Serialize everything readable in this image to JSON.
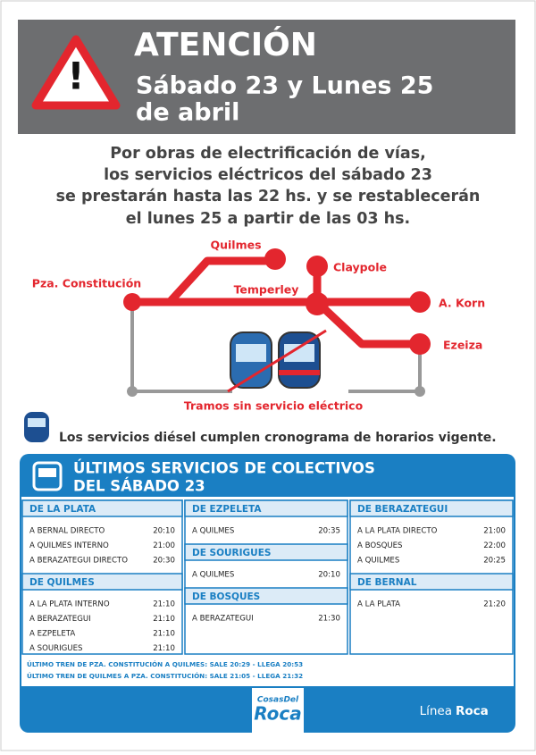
{
  "header": {
    "title": "ATENCIÓN",
    "subtitle_lines": [
      "Sábado 23 y Lunes 25",
      "de abril"
    ]
  },
  "notice": {
    "lines": [
      "Por obras de electrificación de vías,",
      "los servicios eléctricos del sábado 23",
      "se prestarán hasta las 22 hs. y se restablecerán",
      "el lunes 25 a partir de las 03 hs."
    ]
  },
  "map": {
    "stations": [
      "Quilmes",
      "Pza. Constitución",
      "Claypole",
      "Temperley",
      "A. Korn",
      "Ezeiza"
    ],
    "caption": "Tramos sin servicio eléctrico"
  },
  "diesel_note": "Los servicios diésel cumplen cronograma de horarios vigente.",
  "buses": {
    "title_lines": [
      "ÚLTIMOS SERVICIOS DE COLECTIVOS",
      "DEL SÁBADO 23"
    ],
    "columns": [
      [
        {
          "origin": "DE LA PLATA",
          "rows": [
            [
              "A BERNAL DIRECTO",
              "20:10"
            ],
            [
              "A QUILMES INTERNO",
              "21:00"
            ],
            [
              "A BERAZATEGUI DIRECTO",
              "20:30"
            ]
          ]
        },
        {
          "origin": "DE QUILMES",
          "rows": [
            [
              "A LA PLATA INTERNO",
              "21:10"
            ],
            [
              "A BERAZATEGUI",
              "21:10"
            ],
            [
              "A EZPELETA",
              "21:10"
            ],
            [
              "A SOURIGUES",
              "21:10"
            ]
          ]
        }
      ],
      [
        {
          "origin": "DE EZPELETA",
          "rows": [
            [
              "A QUILMES",
              "20:35"
            ]
          ]
        },
        {
          "origin": "DE SOURIGUES",
          "rows": [
            [
              "A QUILMES",
              "20:10"
            ]
          ]
        },
        {
          "origin": "DE BOSQUES",
          "rows": [
            [
              "A BERAZATEGUI",
              "21:30"
            ]
          ]
        }
      ],
      [
        {
          "origin": "DE BERAZATEGUI",
          "rows": [
            [
              "A LA PLATA DIRECTO",
              "21:00"
            ],
            [
              "A BOSQUES",
              "22:00"
            ],
            [
              "A QUILMES",
              "20:25"
            ]
          ]
        },
        {
          "origin": "DE BERNAL",
          "rows": [
            [
              "A LA PLATA",
              "21:20"
            ]
          ]
        }
      ]
    ]
  },
  "footnotes": [
    "ÚLTIMO TREN DE PZA. CONSTITUCIÓN A QUILMES: SALE 20:29 - LLEGA 20:53",
    "ÚLTIMO TREN DE QUILMES A PZA. CONSTITUCIÓN: SALE 21:05 - LLEGA 21:32"
  ],
  "footer": {
    "logo_top": "CosasDel",
    "logo": "Roca",
    "line_label": "Línea",
    "line_name": "Roca"
  }
}
